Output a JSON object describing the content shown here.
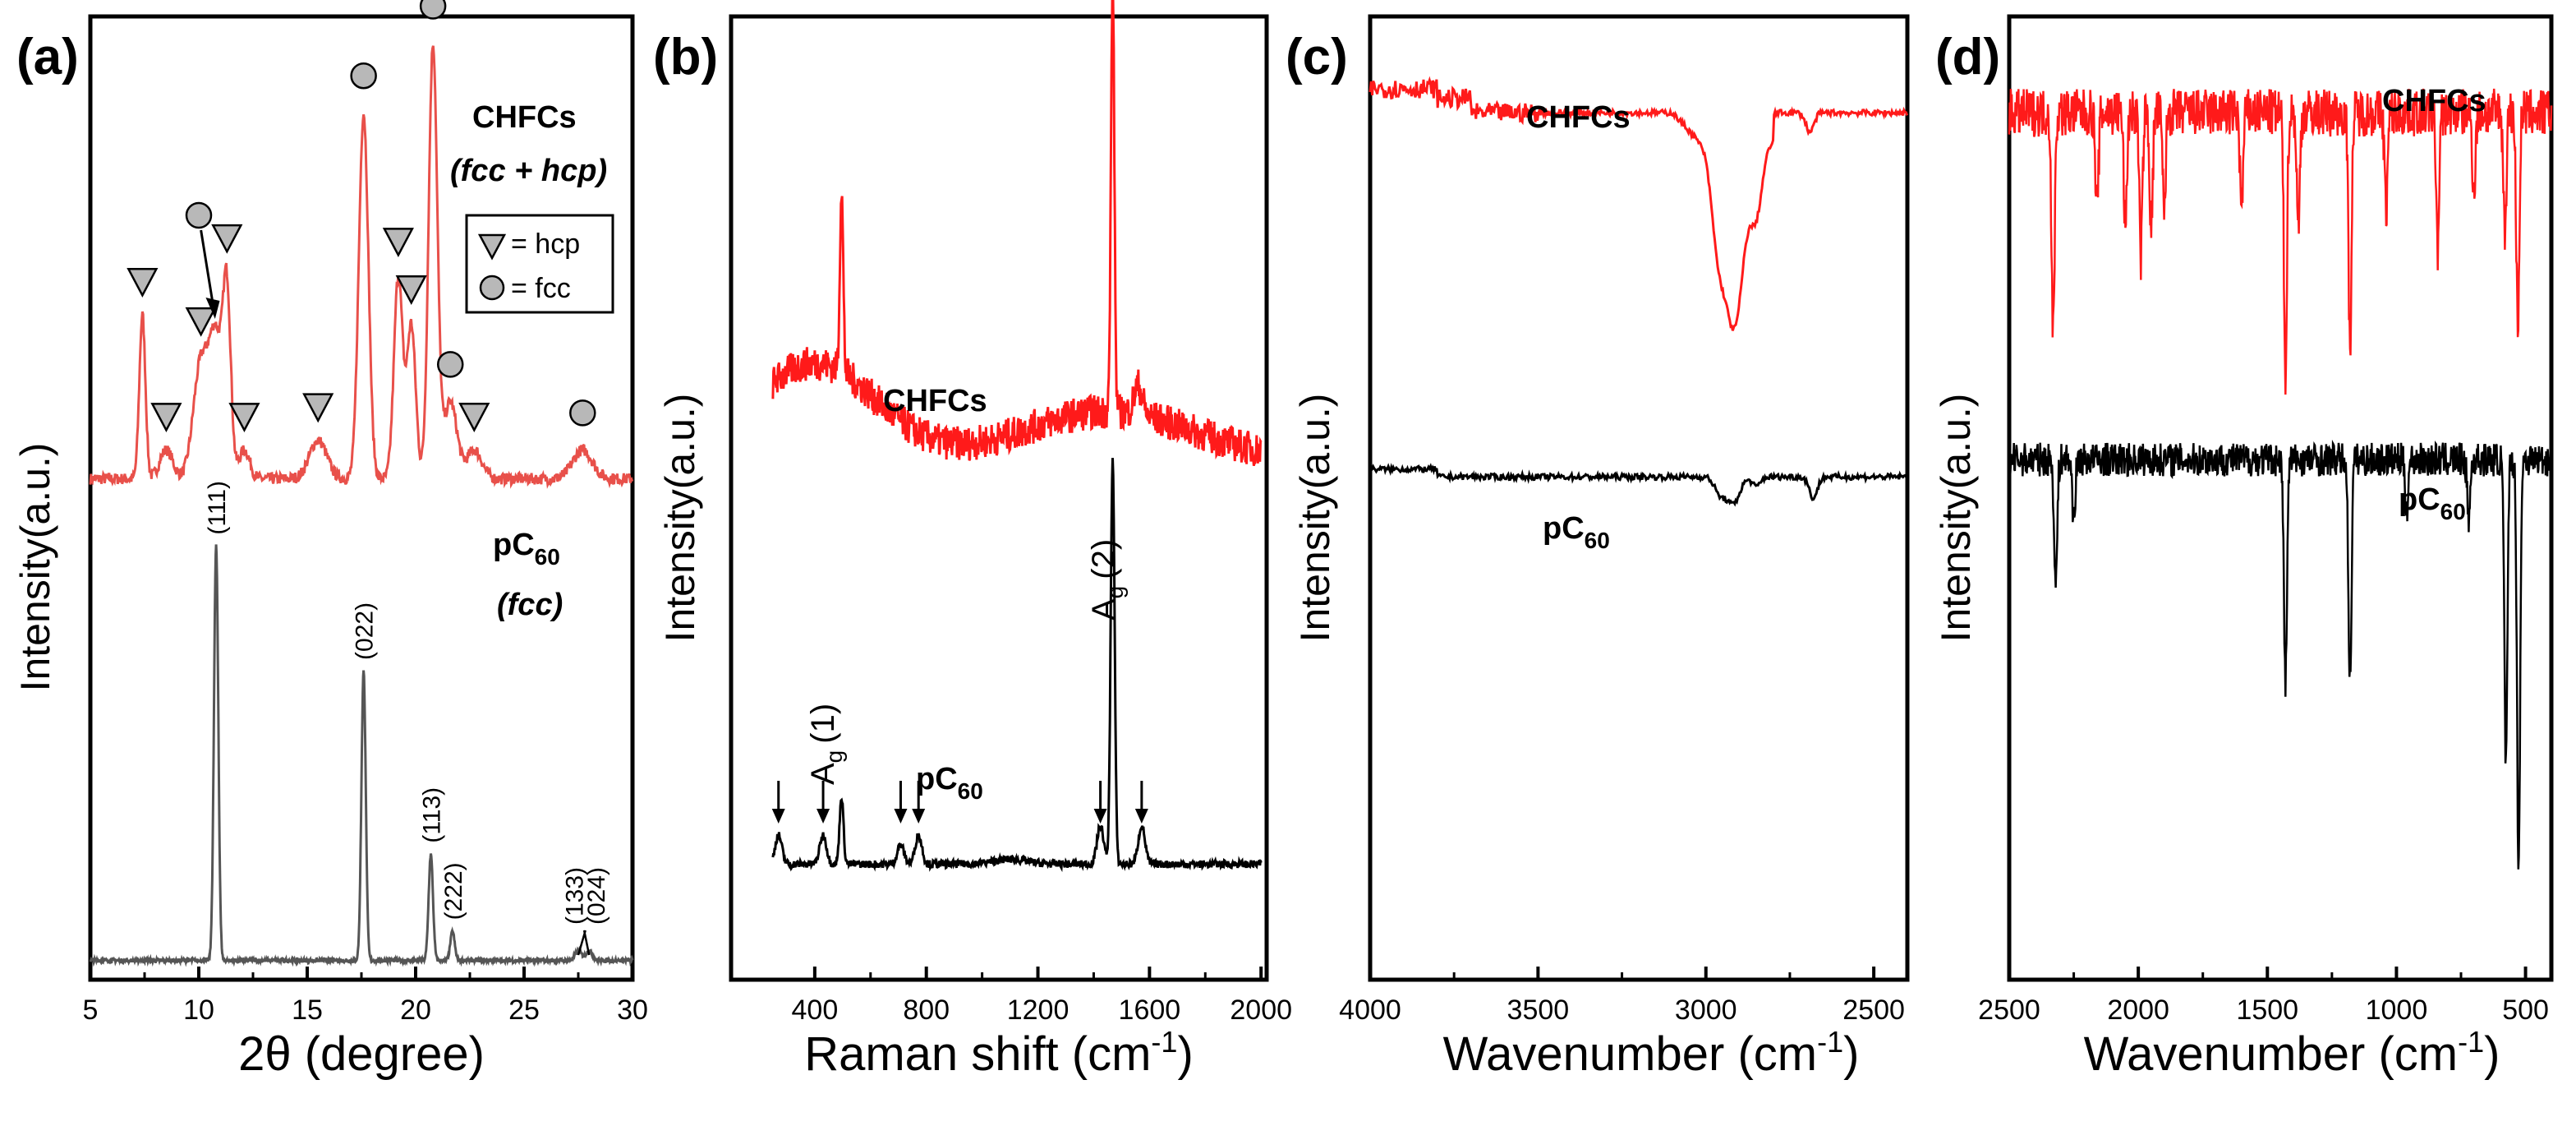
{
  "figure": {
    "colors": {
      "chfc": "#ff1a1a",
      "chfc_xrd": "#e8504a",
      "pc60": "#000000",
      "pc60_xrd": "#555555",
      "marker_fill": "#b8b8b8"
    },
    "panels": [
      {
        "id": "a",
        "label": "(a)",
        "chart_data": {
          "type": "line",
          "title": "",
          "xlabel": "2θ (degree)",
          "ylabel": "Intensity(a.u.)",
          "xlim": [
            5,
            30
          ],
          "x_ticks": [
            5,
            10,
            15,
            20,
            25,
            30
          ],
          "series": [
            {
              "name": "CHFCs (fcc + hcp)",
              "color": "#e8504a",
              "baseline": 0.52,
              "noise": 0.006,
              "peaks": [
                [
                  7.4,
                  0.17,
                  0.14
                ],
                [
                  8.5,
                  0.03,
                  0.3
                ],
                [
                  10.1,
                  0.12,
                  0.35
                ],
                [
                  10.8,
                  0.14,
                  0.3
                ],
                [
                  11.3,
                  0.18,
                  0.18
                ],
                [
                  12.1,
                  0.03,
                  0.25
                ],
                [
                  15.5,
                  0.04,
                  0.4
                ],
                [
                  17.6,
                  0.38,
                  0.22
                ],
                [
                  19.2,
                  0.21,
                  0.2
                ],
                [
                  19.8,
                  0.16,
                  0.2
                ],
                [
                  20.8,
                  0.45,
                  0.2
                ],
                [
                  21.6,
                  0.08,
                  0.3
                ],
                [
                  22.7,
                  0.03,
                  0.35
                ],
                [
                  27.7,
                  0.03,
                  0.45
                ]
              ]
            },
            {
              "name": "pC60 (fcc)",
              "color": "#555555",
              "baseline": 0.02,
              "noise": 0.002,
              "peaks": [
                [
                  10.8,
                  0.43,
                  0.1
                ],
                [
                  17.6,
                  0.3,
                  0.1
                ],
                [
                  20.7,
                  0.11,
                  0.1
                ],
                [
                  21.7,
                  0.03,
                  0.1
                ],
                [
                  27.5,
                  0.01,
                  0.15
                ],
                [
                  28.0,
                  0.01,
                  0.15
                ]
              ]
            }
          ],
          "annotations": {
            "series_labels": [
              "CHFCs",
              "(fcc + hcp)",
              "pC",
              "60",
              "(fcc)"
            ],
            "legend": [
              "= hcp",
              "= fcc"
            ],
            "miller_indices": [
              {
                "x": 10.8,
                "label": "(111)"
              },
              {
                "x": 17.6,
                "label": "(022)"
              },
              {
                "x": 20.7,
                "label": "(113)"
              },
              {
                "x": 21.7,
                "label": "(222)"
              },
              {
                "x": 27.3,
                "label": "(133)"
              },
              {
                "x": 28.3,
                "label": "(024)"
              }
            ],
            "hcp_markers": [
              7.4,
              8.5,
              10.1,
              11.3,
              12.1,
              15.5,
              19.2,
              19.8,
              22.7
            ],
            "fcc_markers": [
              10.8,
              17.6,
              20.8,
              21.6,
              27.7
            ]
          }
        }
      },
      {
        "id": "b",
        "label": "(b)",
        "chart_data": {
          "type": "line",
          "title": "",
          "xlabel": "Raman shift (cm",
          "xlabel_sup": "-1",
          "ylabel": "Intensity(a.u.)",
          "xlim": [
            100,
            2020
          ],
          "x_ticks": [
            400,
            800,
            1200,
            1600,
            2000
          ],
          "series": [
            {
              "name": "CHFCs",
              "color": "#ff1a1a",
              "baseline": 0.54,
              "noise": 0.018,
              "broad": [
                [
                  400,
                  0.1,
                  220
                ],
                [
                  1450,
                  0.05,
                  300
                ]
              ],
              "peaks": [
                [
                  496,
                  0.19,
                  6
                ],
                [
                  1468,
                  0.45,
                  6
                ],
                [
                  1560,
                  0.03,
                  15
                ]
              ]
            },
            {
              "name": "pC60",
              "color": "#000000",
              "baseline": 0.12,
              "noise": 0.004,
              "broad": [],
              "peaks": [
                [
                  270,
                  0.03,
                  12
                ],
                [
                  430,
                  0.03,
                  12
                ],
                [
                  496,
                  0.07,
                  7
                ],
                [
                  708,
                  0.02,
                  12
                ],
                [
                  772,
                  0.03,
                  12
                ],
                [
                  1100,
                  0.005,
                  60
                ],
                [
                  1424,
                  0.04,
                  12
                ],
                [
                  1468,
                  0.42,
                  7
                ],
                [
                  1572,
                  0.04,
                  12
                ]
              ]
            }
          ],
          "annotations": {
            "series_labels": [
              "CHFCs",
              "pC",
              "60"
            ],
            "peak_labels": [
              "A",
              "g",
              "(1)",
              "A",
              "g",
              "(2)"
            ],
            "arrows_x": [
              270,
              430,
              708,
              772,
              1424,
              1572
            ]
          }
        }
      },
      {
        "id": "c",
        "label": "(c)",
        "chart_data": {
          "type": "line",
          "title": "",
          "xlabel": "Wavenumber (cm",
          "xlabel_sup": "-1",
          "ylabel": "Intensity(a.u.)",
          "xlim": [
            4000,
            2400
          ],
          "x_ticks": [
            4000,
            3500,
            3000,
            2500
          ],
          "series": [
            {
              "name": "CHFCs",
              "color": "#ff1a1a"
            },
            {
              "name": "pC60",
              "color": "#000000"
            }
          ],
          "annotations": {
            "series_labels": [
              "CHFCs",
              "pC",
              "60"
            ]
          }
        }
      },
      {
        "id": "d",
        "label": "(d)",
        "chart_data": {
          "type": "line",
          "title": "",
          "xlabel": "Wavenumber (cm",
          "xlabel_sup": "-1",
          "ylabel": "Intensity(a.u.)",
          "xlim": [
            2500,
            400
          ],
          "x_ticks": [
            2500,
            2000,
            1500,
            1000,
            500
          ],
          "series": [
            {
              "name": "CHFCs",
              "color": "#ff1a1a"
            },
            {
              "name": "pC60",
              "color": "#000000"
            }
          ],
          "annotations": {
            "series_labels": [
              "CHFCs",
              "pC",
              "60"
            ]
          }
        }
      }
    ]
  }
}
